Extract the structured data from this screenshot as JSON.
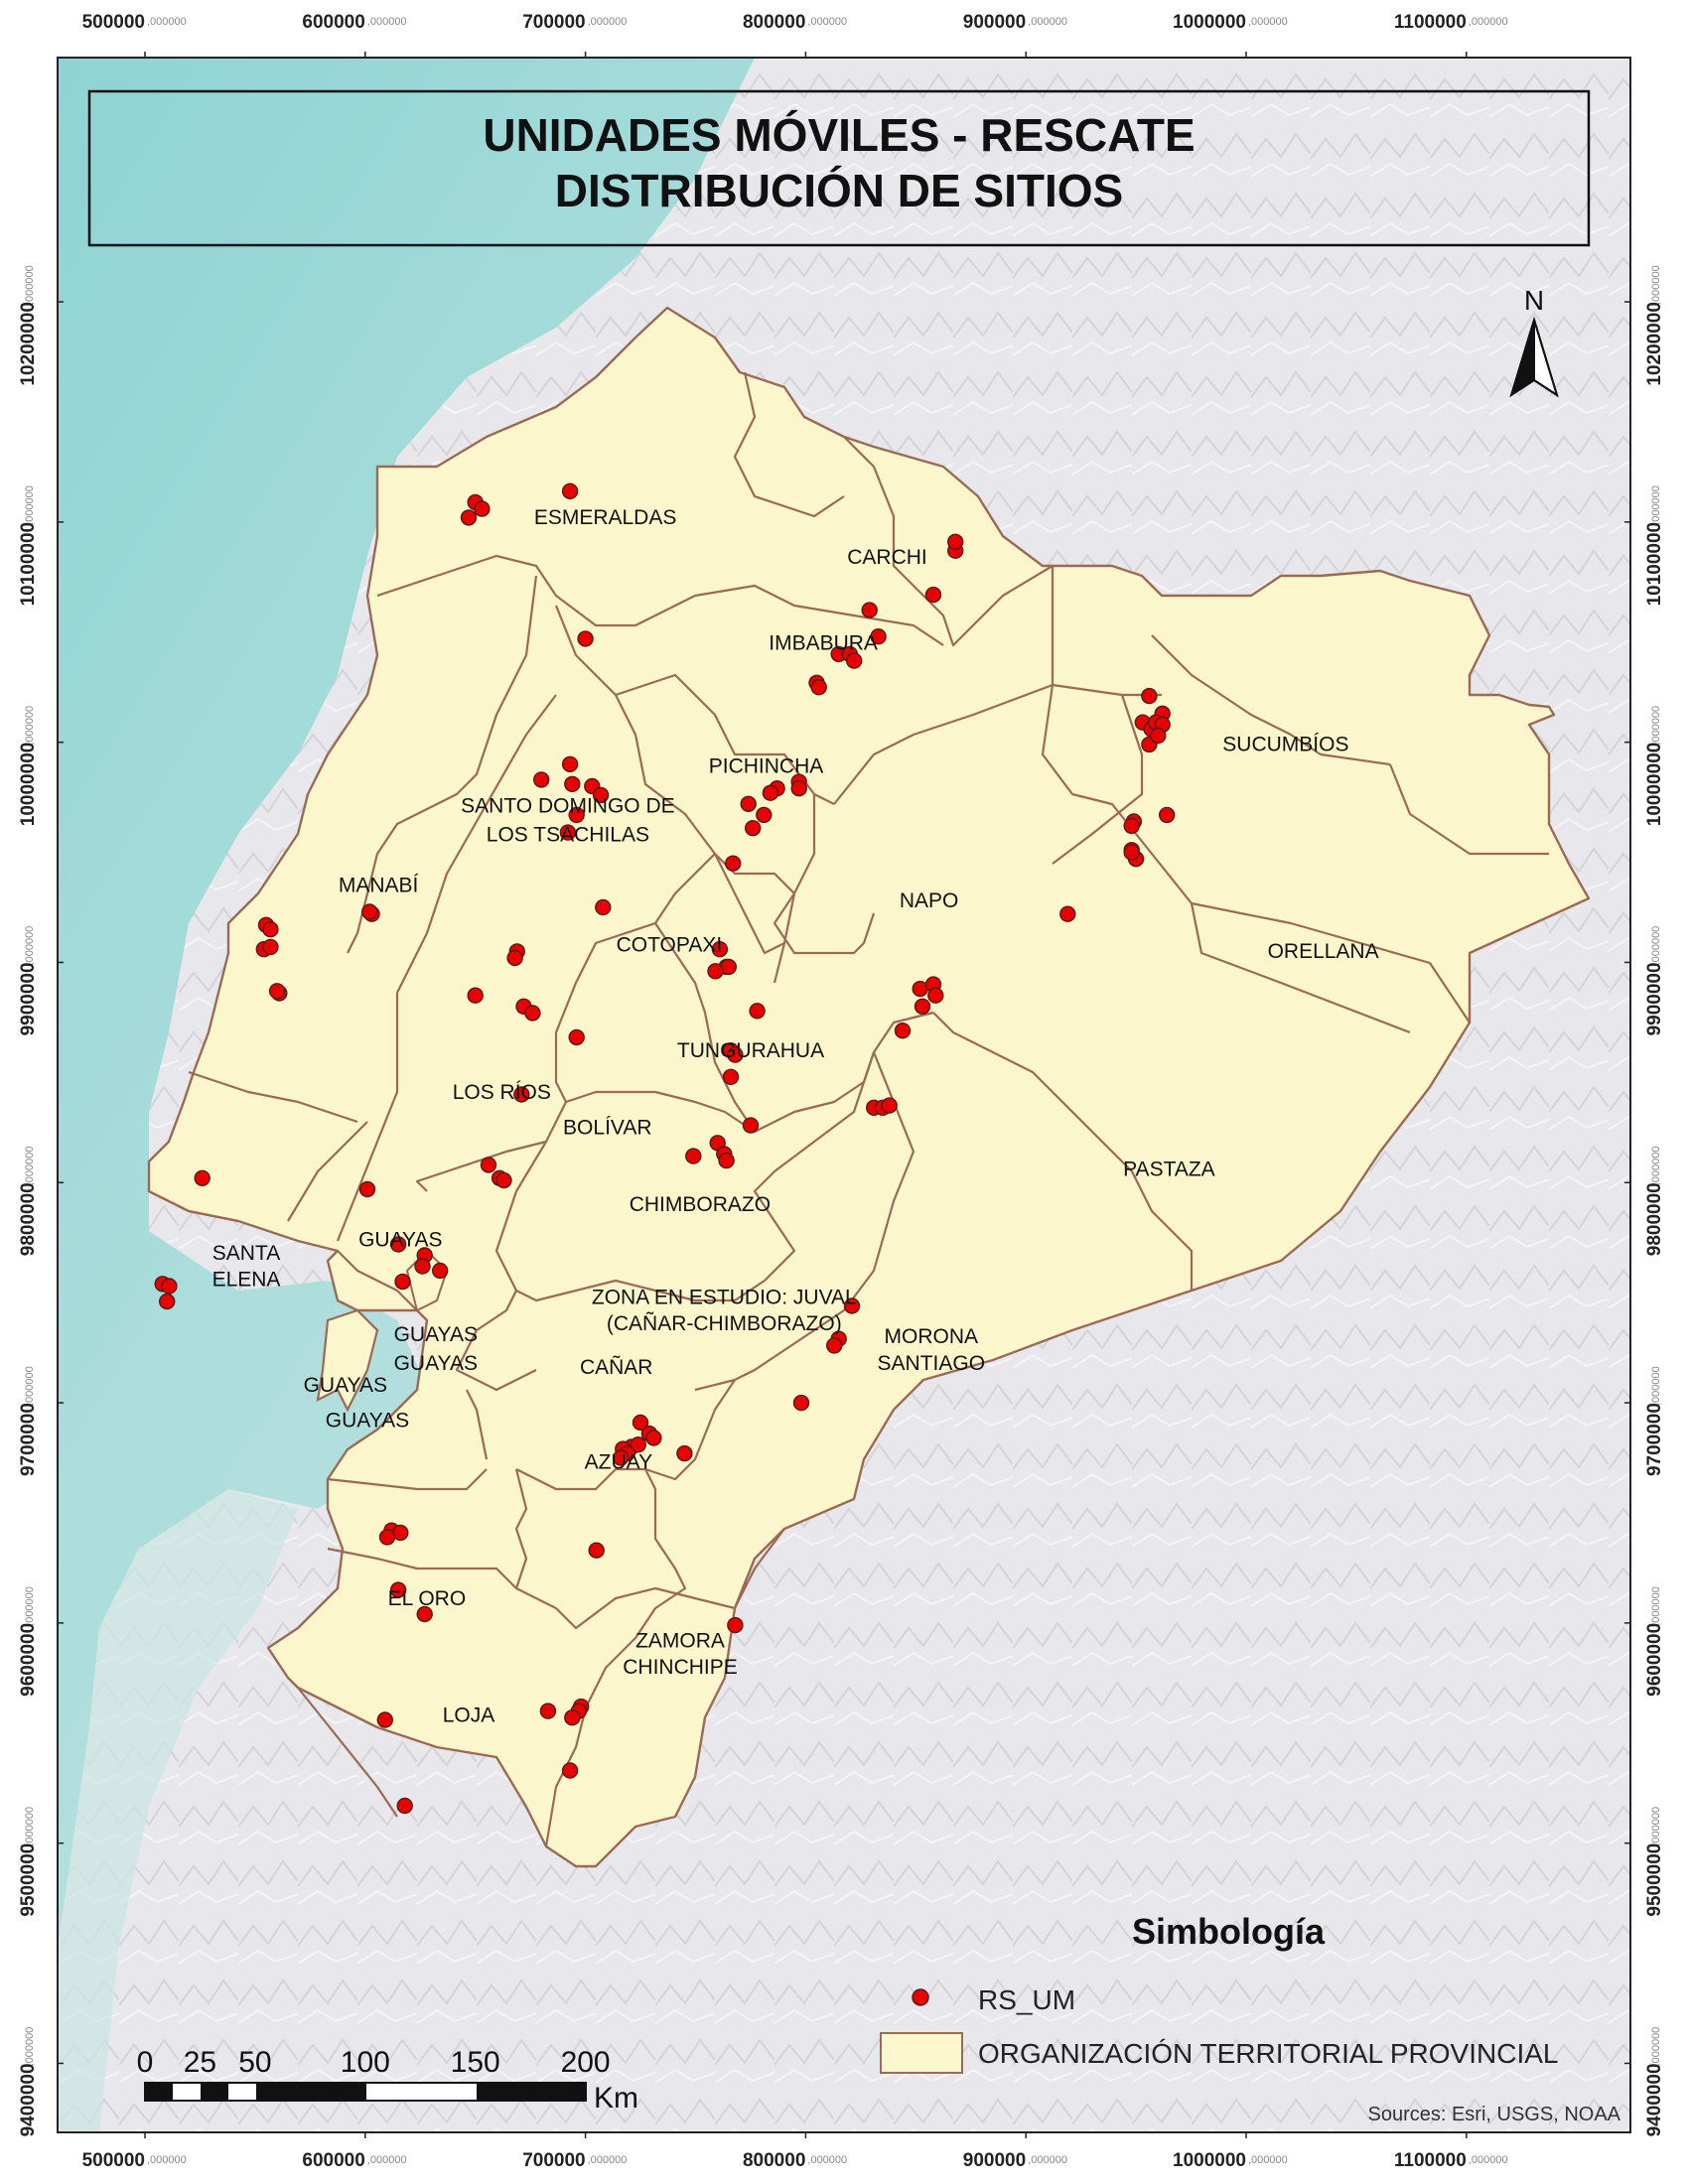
{
  "map": {
    "title_line1": "UNIDADES MÓVILES - RESCATE",
    "title_line2": "DISTRIBUCIÓN DE SITIOS",
    "north_label": "N",
    "x_ticks": [
      {
        "value": "500000",
        "suffix": ",000000"
      },
      {
        "value": "600000",
        "suffix": ",000000"
      },
      {
        "value": "700000",
        "suffix": ",000000"
      },
      {
        "value": "800000",
        "suffix": ",000000"
      },
      {
        "value": "900000",
        "suffix": ",000000"
      },
      {
        "value": "1000000",
        "suffix": ",000000"
      },
      {
        "value": "1100000",
        "suffix": ",000000"
      }
    ],
    "y_ticks": [
      {
        "value": "10200000",
        "suffix": ",000000"
      },
      {
        "value": "10100000",
        "suffix": ",000000"
      },
      {
        "value": "10000000",
        "suffix": ",000000"
      },
      {
        "value": "9900000",
        "suffix": ",000000"
      },
      {
        "value": "9800000",
        "suffix": ",000000"
      },
      {
        "value": "9700000",
        "suffix": ",000000"
      },
      {
        "value": "9600000",
        "suffix": ",000000"
      },
      {
        "value": "9500000",
        "suffix": ",000000"
      },
      {
        "value": "9400000",
        "suffix": ",000000"
      }
    ],
    "provinces": [
      {
        "name": "ESMERALDAS",
        "e": 709000,
        "n": 10099000
      },
      {
        "name": "CARCHI",
        "e": 837000,
        "n": 10081000
      },
      {
        "name": "IMBABURA",
        "e": 808000,
        "n": 10042000
      },
      {
        "name": "SUCUMBÍOS",
        "e": 1018000,
        "n": 9996000
      },
      {
        "name": "PICHINCHA",
        "e": 782000,
        "n": 9986000
      },
      {
        "name": "SANTO DOMINGO DE",
        "e": 692000,
        "n": 9968000
      },
      {
        "name": "LOS TSACHILAS",
        "e": 692000,
        "n": 9955000
      },
      {
        "name": "MANABÍ",
        "e": 606000,
        "n": 9932000
      },
      {
        "name": "NAPO",
        "e": 856000,
        "n": 9925000
      },
      {
        "name": "COTOPAXI",
        "e": 738000,
        "n": 9905000
      },
      {
        "name": "ORELLANA",
        "e": 1035000,
        "n": 9902000
      },
      {
        "name": "TUNGURAHUA",
        "e": 775000,
        "n": 9857000
      },
      {
        "name": "LOS RÍOS",
        "e": 662000,
        "n": 9838000
      },
      {
        "name": "BOLÍVAR",
        "e": 710000,
        "n": 9822000
      },
      {
        "name": "PASTAZA",
        "e": 965000,
        "n": 9803000
      },
      {
        "name": "CHIMBORAZO",
        "e": 752000,
        "n": 9787000
      },
      {
        "name": "GUAYAS",
        "e": 616000,
        "n": 9771000
      },
      {
        "name": "SANTA",
        "e": 546000,
        "n": 9765000
      },
      {
        "name": "ELENA",
        "e": 546000,
        "n": 9753000
      },
      {
        "name": "ZONA EN ESTUDIO: JUVAL",
        "e": 763000,
        "n": 9745000
      },
      {
        "name": "(CAÑAR-CHIMBORAZO)",
        "e": 763000,
        "n": 9733000
      },
      {
        "name": "MORONA",
        "e": 857000,
        "n": 9727000
      },
      {
        "name": "SANTIAGO",
        "e": 857000,
        "n": 9715000
      },
      {
        "name": "GUAYAS",
        "e": 632000,
        "n": 9728000
      },
      {
        "name": "GUAYAS",
        "e": 632000,
        "n": 9715000
      },
      {
        "name": "CAÑAR",
        "e": 714000,
        "n": 9713000
      },
      {
        "name": "GUAYAS",
        "e": 591000,
        "n": 9705000
      },
      {
        "name": "GUAYAS",
        "e": 601000,
        "n": 9689000
      },
      {
        "name": "AZUAY",
        "e": 715000,
        "n": 9670000
      },
      {
        "name": "EL ORO",
        "e": 628000,
        "n": 9608000
      },
      {
        "name": "ZAMORA",
        "e": 743000,
        "n": 9589000
      },
      {
        "name": "CHINCHIPE",
        "e": 743000,
        "n": 9577000
      },
      {
        "name": "LOJA",
        "e": 647000,
        "n": 9555000
      }
    ],
    "sites": [
      [
        650000,
        10109000
      ],
      [
        653000,
        10106000
      ],
      [
        647000,
        10102000
      ],
      [
        693000,
        10114000
      ],
      [
        868000,
        10087000
      ],
      [
        868000,
        10091000
      ],
      [
        858000,
        10067000
      ],
      [
        829000,
        10060000
      ],
      [
        833000,
        10048000
      ],
      [
        815000,
        10040000
      ],
      [
        820000,
        10040000
      ],
      [
        822000,
        10037000
      ],
      [
        805000,
        10027000
      ],
      [
        806000,
        10025000
      ],
      [
        700000,
        10047000
      ],
      [
        956000,
        10021000
      ],
      [
        953000,
        10009000
      ],
      [
        957000,
        10006000
      ],
      [
        962000,
        10013000
      ],
      [
        959000,
        10009000
      ],
      [
        962000,
        10008000
      ],
      [
        956000,
        9999000
      ],
      [
        960000,
        10003000
      ],
      [
        964000,
        9967000
      ],
      [
        949000,
        9964000
      ],
      [
        948000,
        9962000
      ],
      [
        948000,
        9951000
      ],
      [
        950000,
        9947000
      ],
      [
        948000,
        9950000
      ],
      [
        919000,
        9922000
      ],
      [
        693000,
        9990000
      ],
      [
        680000,
        9983000
      ],
      [
        694000,
        9981000
      ],
      [
        703000,
        9980000
      ],
      [
        707000,
        9976000
      ],
      [
        696000,
        9967000
      ],
      [
        692000,
        9959000
      ],
      [
        797000,
        9982000
      ],
      [
        797000,
        9979000
      ],
      [
        787000,
        9979000
      ],
      [
        784000,
        9977000
      ],
      [
        781000,
        9967000
      ],
      [
        774000,
        9972000
      ],
      [
        776000,
        9961000
      ],
      [
        767000,
        9945000
      ],
      [
        555000,
        9917000
      ],
      [
        557000,
        9915000
      ],
      [
        554000,
        9906000
      ],
      [
        557000,
        9907000
      ],
      [
        561000,
        9886000
      ],
      [
        560000,
        9887000
      ],
      [
        603000,
        9922000
      ],
      [
        602000,
        9923000
      ],
      [
        708000,
        9925000
      ],
      [
        669000,
        9905000
      ],
      [
        668000,
        9902000
      ],
      [
        672000,
        9880000
      ],
      [
        676000,
        9877000
      ],
      [
        650000,
        9885000
      ],
      [
        696000,
        9866000
      ],
      [
        761000,
        9906000
      ],
      [
        764000,
        9898000
      ],
      [
        765000,
        9898000
      ],
      [
        759000,
        9896000
      ],
      [
        778000,
        9878000
      ],
      [
        766000,
        9860000
      ],
      [
        768000,
        9858000
      ],
      [
        766000,
        9848000
      ],
      [
        852000,
        9888000
      ],
      [
        853000,
        9880000
      ],
      [
        858000,
        9890000
      ],
      [
        859000,
        9885000
      ],
      [
        844000,
        9869000
      ],
      [
        831000,
        9834000
      ],
      [
        835000,
        9834000
      ],
      [
        838000,
        9835000
      ],
      [
        671000,
        9840000
      ],
      [
        775000,
        9826000
      ],
      [
        760000,
        9818000
      ],
      [
        763000,
        9813000
      ],
      [
        764000,
        9810000
      ],
      [
        749000,
        9812000
      ],
      [
        656000,
        9808000
      ],
      [
        661000,
        9802000
      ],
      [
        663000,
        9801000
      ],
      [
        601000,
        9797000
      ],
      [
        526000,
        9802000
      ],
      [
        615000,
        9772000
      ],
      [
        627000,
        9767000
      ],
      [
        626000,
        9762000
      ],
      [
        634000,
        9760000
      ],
      [
        617000,
        9755000
      ],
      [
        508000,
        9754000
      ],
      [
        511000,
        9753000
      ],
      [
        510000,
        9746000
      ],
      [
        821000,
        9744000
      ],
      [
        815000,
        9729000
      ],
      [
        813000,
        9726000
      ],
      [
        798000,
        9700000
      ],
      [
        725000,
        9691000
      ],
      [
        729000,
        9686000
      ],
      [
        721000,
        9680000
      ],
      [
        724000,
        9681000
      ],
      [
        717000,
        9679000
      ],
      [
        719000,
        9677000
      ],
      [
        716000,
        9675000
      ],
      [
        731000,
        9684000
      ],
      [
        745000,
        9677000
      ],
      [
        612000,
        9642000
      ],
      [
        616000,
        9641000
      ],
      [
        610000,
        9639000
      ],
      [
        615000,
        9615000
      ],
      [
        627000,
        9604000
      ],
      [
        705000,
        9633000
      ],
      [
        768000,
        9599000
      ],
      [
        698000,
        9562000
      ],
      [
        697000,
        9560000
      ],
      [
        683000,
        9560000
      ],
      [
        694000,
        9557000
      ],
      [
        609000,
        9556000
      ],
      [
        693000,
        9533000
      ],
      [
        618000,
        9517000
      ]
    ],
    "legend": {
      "title": "Simbología",
      "sites_label": "RS_UM",
      "provinces_label": "ORGANIZACIÓN TERRITORIAL PROVINCIAL"
    },
    "scalebar": {
      "ticks": [
        "0",
        "25",
        "50",
        "100",
        "150",
        "200"
      ],
      "unit": "Km"
    },
    "credits": "Sources: Esri, USGS, NOAA",
    "colors": {
      "province_fill": "#fcf6cc",
      "province_border": "#9b6a55",
      "site_fill": "#e60000",
      "ocean": "#a8d9d8",
      "ocean_shallow": "#9adbdc",
      "terrain": "#e6e6ea"
    }
  }
}
